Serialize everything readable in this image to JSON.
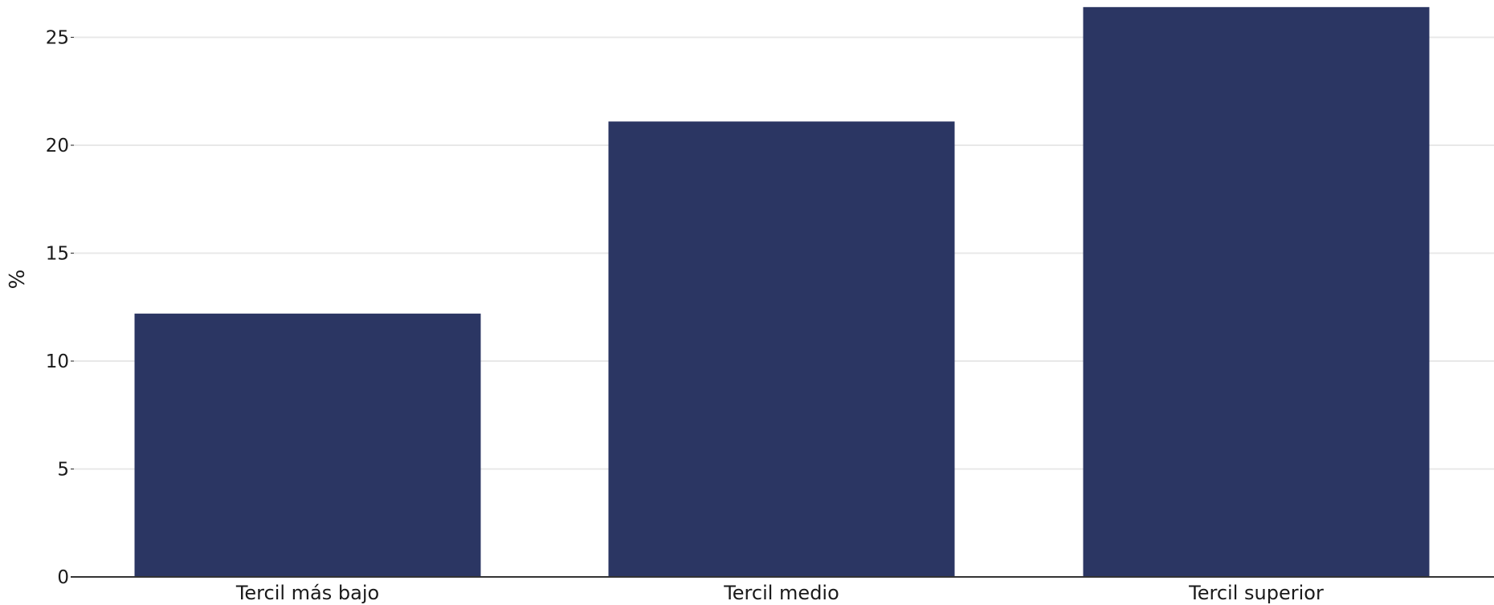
{
  "chart_data": {
    "type": "bar",
    "title": "",
    "xlabel": "",
    "ylabel": "%",
    "categories": [
      "Tercil más bajo",
      "Tercil medio",
      "Tercil superior"
    ],
    "values": [
      12.2,
      21.1,
      26.4
    ],
    "ylim": [
      0,
      26.5
    ],
    "yticks": [
      0,
      5,
      10,
      15,
      20,
      25
    ],
    "grid": true,
    "bar_color": "#2b3663",
    "grid_color": "#e8e8e8",
    "axis_color": "#333333"
  }
}
